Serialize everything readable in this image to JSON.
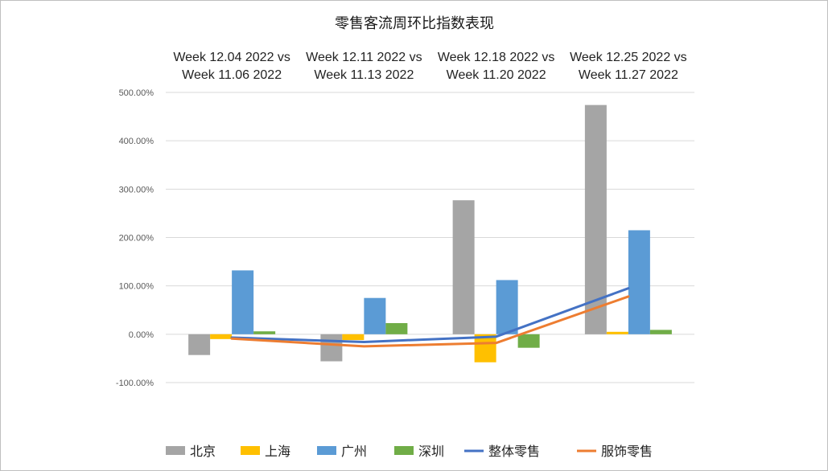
{
  "chart_data": {
    "type": "bar",
    "title": "零售客流周环比指数表现",
    "categories": [
      [
        "Week 12.04 2022  vs",
        "Week 11.06 2022"
      ],
      [
        "Week 12.11 2022  vs",
        "Week 11.13 2022"
      ],
      [
        "Week 12.18 2022  vs",
        "Week 11.20 2022"
      ],
      [
        "Week 12.25 2022  vs",
        "Week 11.27 2022"
      ]
    ],
    "y_ticks": [
      "500.00%",
      "400.00%",
      "300.00%",
      "200.00%",
      "100.00%",
      "0.00%",
      "-100.00%"
    ],
    "ylim": [
      -100,
      500
    ],
    "unit": "%",
    "grid": true,
    "legend_position": "bottom",
    "series": [
      {
        "name": "北京",
        "kind": "bar",
        "color": "#a5a5a5",
        "values": [
          -43,
          -56,
          277,
          474
        ]
      },
      {
        "name": "上海",
        "kind": "bar",
        "color": "#ffc000",
        "values": [
          -10,
          -12,
          -58,
          5
        ]
      },
      {
        "name": "广州",
        "kind": "bar",
        "color": "#5b9bd5",
        "values": [
          132,
          75,
          112,
          215
        ]
      },
      {
        "name": "深圳",
        "kind": "bar",
        "color": "#70ad47",
        "values": [
          6,
          23,
          -28,
          9
        ]
      },
      {
        "name": "整体零售",
        "kind": "line",
        "color": "#4472c4",
        "values": [
          -7,
          -16,
          -5,
          95
        ]
      },
      {
        "name": "服饰零售",
        "kind": "line",
        "color": "#ed7d31",
        "values": [
          -9,
          -25,
          -18,
          78
        ]
      }
    ]
  }
}
